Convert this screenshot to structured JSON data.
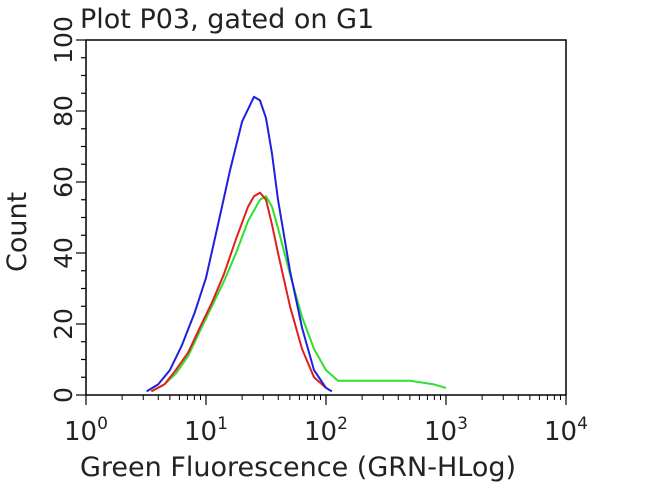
{
  "chart_data": {
    "type": "line",
    "title": "Plot P03, gated on G1",
    "xlabel": "Green Fluorescence (GRN-HLog)",
    "ylabel": "Count",
    "x_scale": "log",
    "xlim": [
      1,
      10000
    ],
    "ylim": [
      0,
      100
    ],
    "x_ticks": [
      {
        "value": 1,
        "base": "10",
        "exp": "0"
      },
      {
        "value": 10,
        "base": "10",
        "exp": "1"
      },
      {
        "value": 100,
        "base": "10",
        "exp": "2"
      },
      {
        "value": 1000,
        "base": "10",
        "exp": "3"
      },
      {
        "value": 10000,
        "base": "10",
        "exp": "4"
      }
    ],
    "y_ticks": [
      {
        "value": 0,
        "label": "0"
      },
      {
        "value": 20,
        "label": "20"
      },
      {
        "value": 40,
        "label": "40"
      },
      {
        "value": 60,
        "label": "60"
      },
      {
        "value": 80,
        "label": "80"
      },
      {
        "value": 100,
        "label": "100"
      }
    ],
    "grid": false,
    "series": [
      {
        "color": "#1f1fe0",
        "x": [
          3.2,
          4.0,
          5.0,
          6.3,
          8.0,
          10.0,
          12.6,
          15.8,
          20.0,
          25.1,
          28.2,
          31.6,
          35.5,
          39.8,
          50.1,
          63.1,
          79.4,
          100,
          112
        ],
        "y": [
          1,
          3,
          7,
          14,
          23,
          33,
          48,
          63,
          77,
          84,
          83,
          78,
          68,
          55,
          35,
          19,
          7,
          2,
          1
        ]
      },
      {
        "color": "#e01f1f",
        "x": [
          3.5,
          4.5,
          5.6,
          7.1,
          8.9,
          11.2,
          14.1,
          17.8,
          22.4,
          25.1,
          28.2,
          31.6,
          35.5,
          39.8,
          50.1,
          63.1,
          79.4,
          100
        ],
        "y": [
          1,
          3,
          7,
          12,
          19,
          26,
          34,
          44,
          53,
          56,
          57,
          55,
          48,
          40,
          25,
          13,
          5,
          2
        ]
      },
      {
        "color": "#2fe02f",
        "x": [
          3.5,
          4.5,
          5.6,
          7.1,
          8.9,
          11.2,
          14.1,
          17.8,
          22.4,
          28.2,
          31.6,
          35.5,
          39.8,
          50.1,
          63.1,
          79.4,
          100,
          126,
          158,
          200,
          316,
          501,
          794,
          1000
        ],
        "y": [
          1,
          3,
          6,
          11,
          18,
          25,
          32,
          40,
          49,
          55,
          56,
          53,
          47,
          34,
          22,
          13,
          7,
          4,
          4,
          4,
          4,
          4,
          3,
          2
        ]
      }
    ]
  }
}
